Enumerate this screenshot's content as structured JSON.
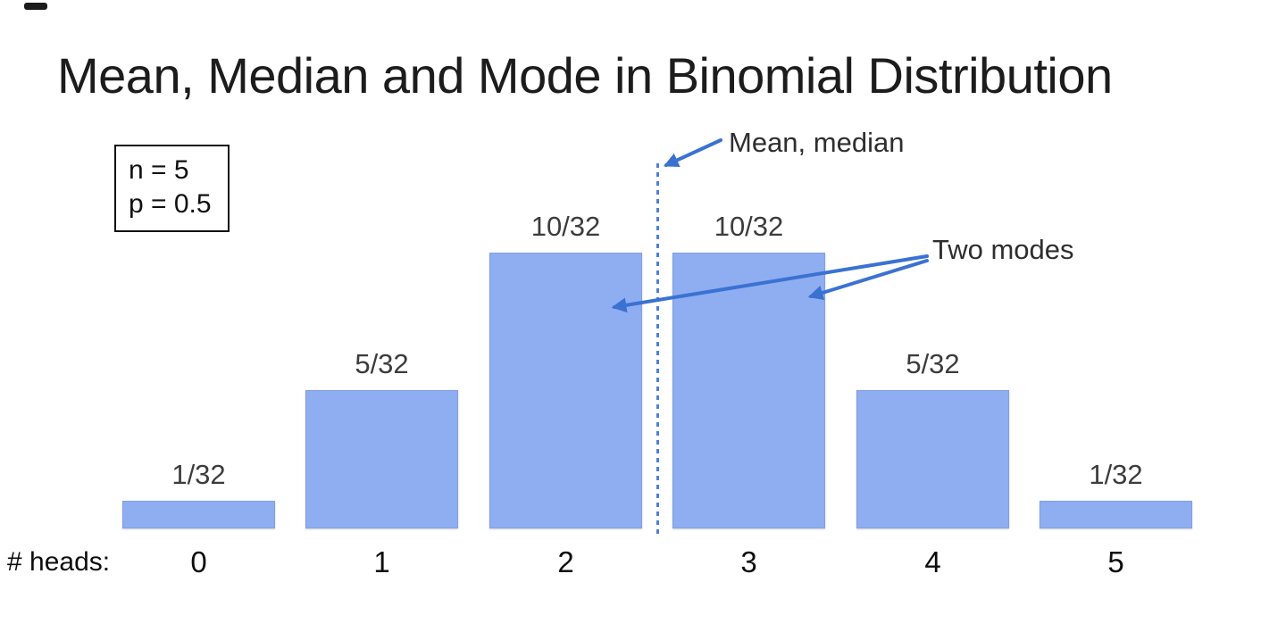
{
  "page": {
    "title": "Mean, Median and Mode in Binomial Distribution"
  },
  "params_box": {
    "lines": [
      "n = 5",
      "p = 0.5"
    ]
  },
  "annotations": {
    "mean_median_label": "Mean, median",
    "two_modes_label": "Two modes"
  },
  "x_axis": {
    "prefix": "# heads:"
  },
  "chart_data": {
    "type": "bar",
    "title": "Mean, Median and Mode in Binomial Distribution",
    "categories": [
      "0",
      "1",
      "2",
      "3",
      "4",
      "5"
    ],
    "numerators": [
      1,
      5,
      10,
      10,
      5,
      1
    ],
    "denominator": 32,
    "values": [
      0.03125,
      0.15625,
      0.3125,
      0.3125,
      0.15625,
      0.03125
    ],
    "value_labels": [
      "1/32",
      "5/32",
      "10/32",
      "10/32",
      "5/32",
      "1/32"
    ],
    "xlabel": "# heads:",
    "ylabel": "",
    "ylim": [
      0,
      0.3125
    ],
    "n": 5,
    "p": 0.5,
    "mean_median": 2.5,
    "modes": [
      2,
      3
    ],
    "grid": false,
    "legend": false,
    "bar_color": "#8fadf1",
    "annotations": [
      {
        "text": "Mean, median",
        "type": "dashed-vline",
        "x": 2.5
      },
      {
        "text": "Two modes",
        "type": "arrows",
        "targets": [
          2,
          3
        ]
      }
    ]
  },
  "colors": {
    "bar_fill": "#8fadf1",
    "arrow_blue": "#3a72d2",
    "dashed_line_blue": "#4d7fd6",
    "title_text": "#1c1c1c",
    "value_label_text": "#3c3c3c"
  }
}
